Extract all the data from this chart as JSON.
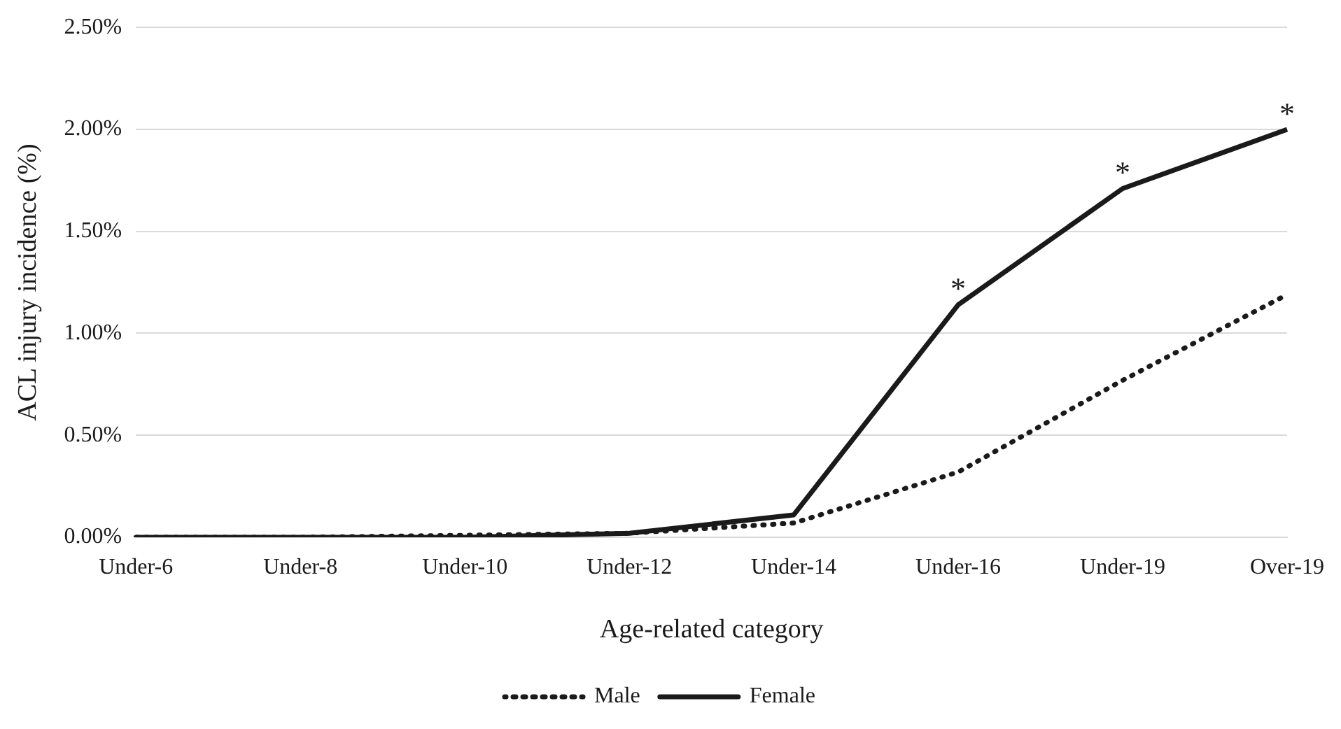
{
  "chart_data": {
    "type": "line",
    "xlabel": "Age-related category",
    "ylabel": "ACL injury incidence (%)",
    "categories": [
      "Under-6",
      "Under-8",
      "Under-10",
      "Under-12",
      "Under-14",
      "Under-16",
      "Under-19",
      "Over-19"
    ],
    "series": [
      {
        "name": "Male",
        "color": "#1a1a1a",
        "line_style": "dotted",
        "values": [
          0,
          0,
          0.01,
          0.02,
          0.07,
          0.32,
          0.77,
          1.19
        ]
      },
      {
        "name": "Female",
        "color": "#1a1a1a",
        "line_style": "solid",
        "values": [
          0,
          0,
          0,
          0.02,
          0.11,
          1.14,
          1.71,
          2.0
        ]
      }
    ],
    "ylim": [
      0,
      2.5
    ],
    "yticks": [
      {
        "value": 0,
        "label": "0.00%"
      },
      {
        "value": 0.5,
        "label": "0.50%"
      },
      {
        "value": 1,
        "label": "1.00%"
      },
      {
        "value": 1.5,
        "label": "1.50%"
      },
      {
        "value": 2,
        "label": "2.00%"
      },
      {
        "value": 2.5,
        "label": "2.50%"
      }
    ],
    "grid": "y",
    "legend": "bottom",
    "marker": "none",
    "annotations": [
      {
        "text": "*",
        "x": "Under-16",
        "y": 1.14
      },
      {
        "text": "*",
        "x": "Under-19",
        "y": 1.71
      },
      {
        "text": "*",
        "x": "Over-19",
        "y": 2.0
      }
    ]
  }
}
